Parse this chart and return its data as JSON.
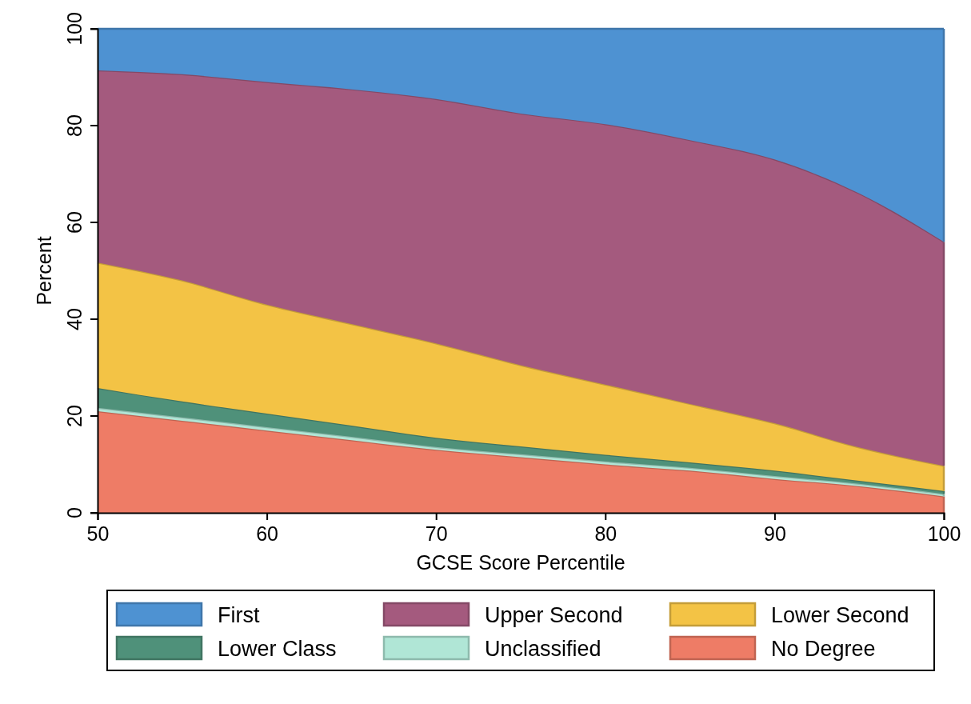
{
  "chart_data": {
    "type": "area",
    "stacked": true,
    "xlabel": "GCSE Score Percentile",
    "ylabel": "Percent",
    "x": [
      50,
      55,
      60,
      65,
      70,
      75,
      80,
      85,
      90,
      95,
      100
    ],
    "xlim": [
      50,
      100
    ],
    "xticks": [
      50,
      60,
      70,
      80,
      90,
      100
    ],
    "ylim": [
      0,
      100
    ],
    "yticks": [
      0,
      20,
      40,
      60,
      80,
      100
    ],
    "grid": false,
    "legend": "bottom",
    "series": [
      {
        "name": "No Degree",
        "color": "#ee7c66",
        "values": [
          21,
          19,
          17,
          15,
          13,
          11.5,
          10,
          8.7,
          7,
          5.5,
          3.4
        ]
      },
      {
        "name": "Unclassified",
        "color": "#b0e6d6",
        "values": [
          0.7,
          0.7,
          0.7,
          0.7,
          0.6,
          0.6,
          0.6,
          0.6,
          0.6,
          0.5,
          0.5
        ]
      },
      {
        "name": "Lower Class",
        "color": "#4f917a",
        "values": [
          4.1,
          3.3,
          2.8,
          2.3,
          1.9,
          1.6,
          1.4,
          1.1,
          1.1,
          0.6,
          0.6
        ]
      },
      {
        "name": "Lower Second",
        "color": "#f3c345",
        "values": [
          25.9,
          25,
          22.5,
          21,
          19.5,
          16.8,
          14.5,
          12.1,
          9.8,
          6.9,
          5.2
        ]
      },
      {
        "name": "Upper Second",
        "color": "#a45a7e",
        "values": [
          39.7,
          42.6,
          46,
          48.5,
          50.5,
          52,
          53.8,
          54.5,
          54.5,
          52.5,
          46.3
        ]
      },
      {
        "name": "First",
        "color": "#4e92d2",
        "values": [
          8.6,
          9.4,
          11,
          12.5,
          14.5,
          17.5,
          19.7,
          23,
          27,
          34,
          44
        ]
      }
    ]
  }
}
